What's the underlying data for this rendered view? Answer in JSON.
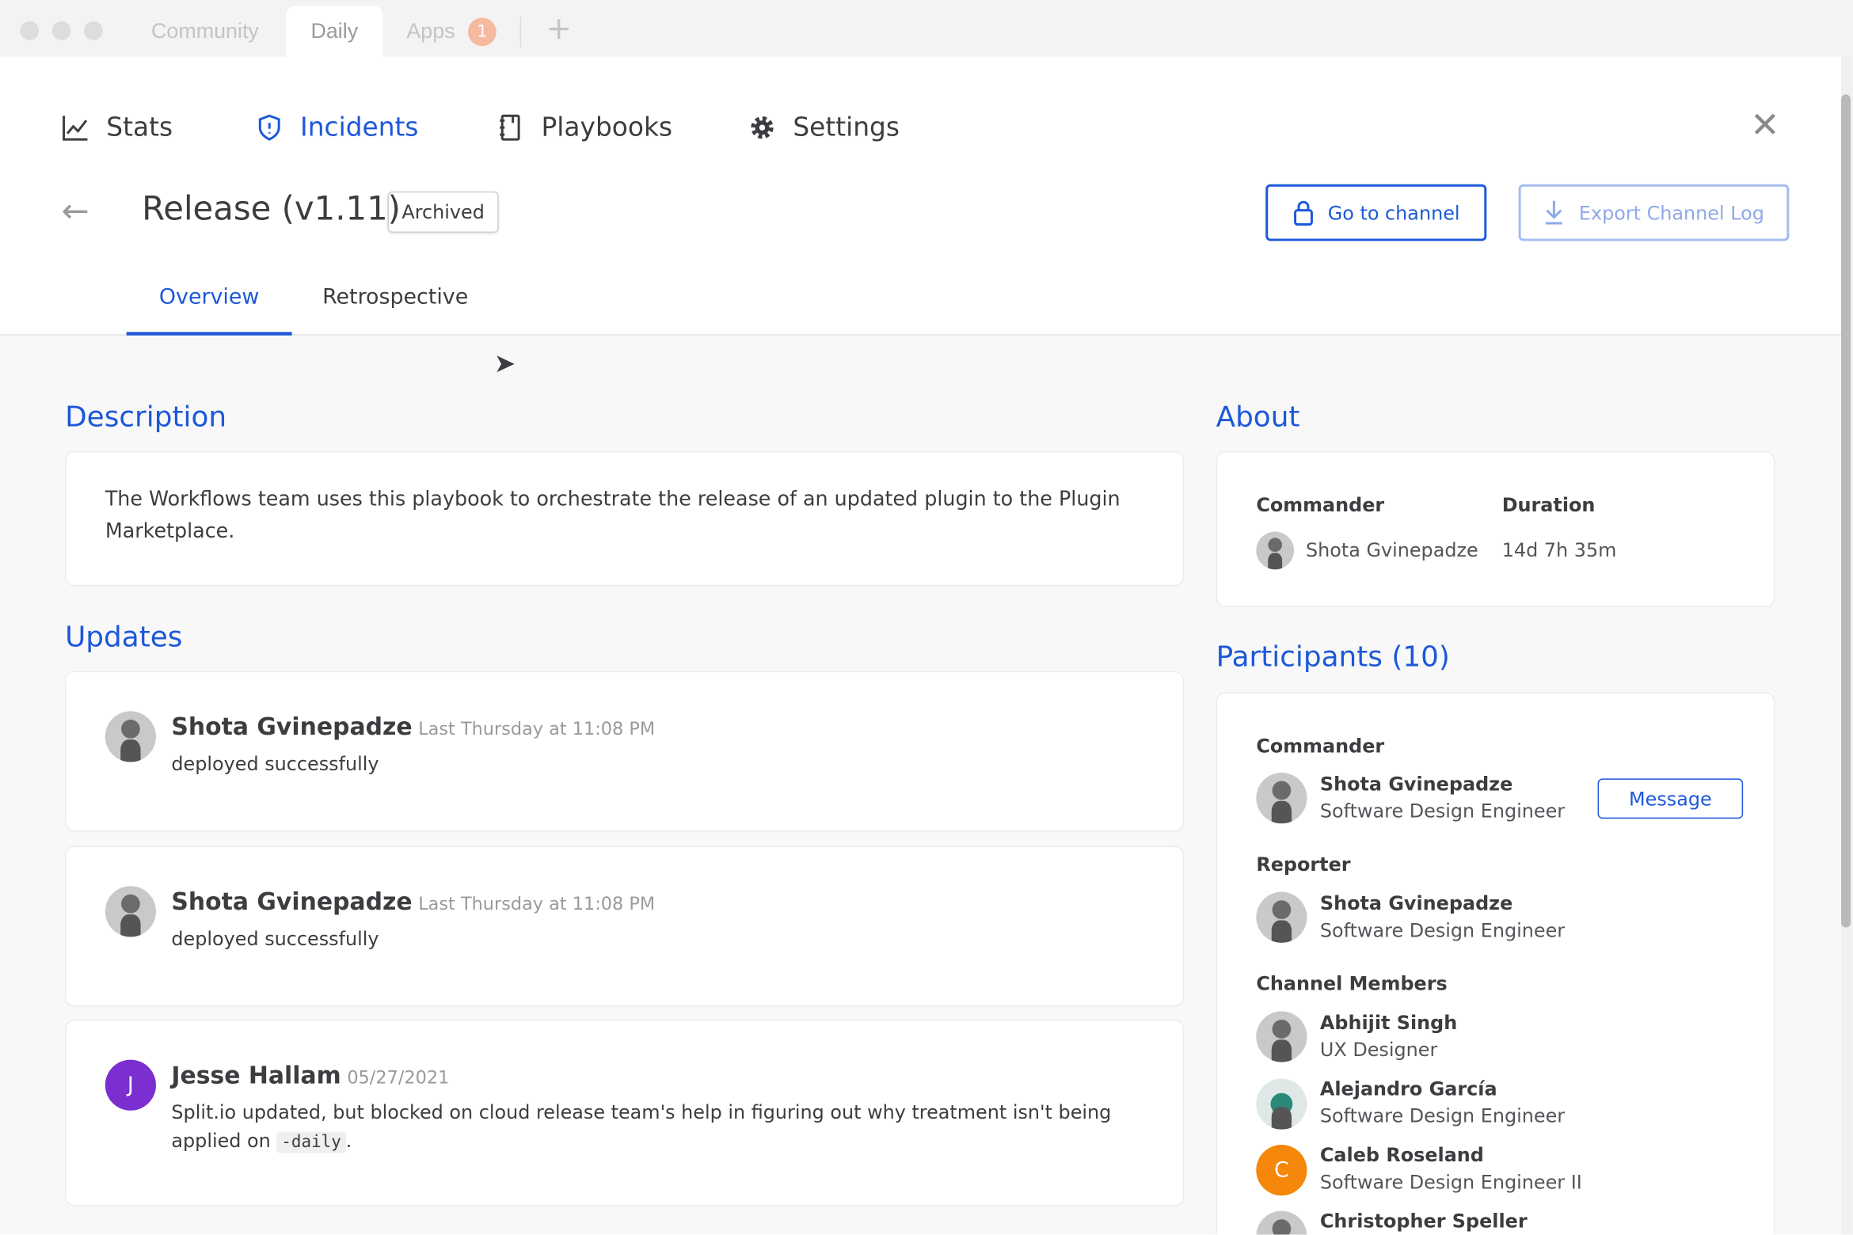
{
  "window": {
    "tabs": [
      {
        "label": "Community"
      },
      {
        "label": "Daily",
        "active": true
      },
      {
        "label": "Apps",
        "badge": "1"
      }
    ],
    "new_tab_icon": "plus-icon"
  },
  "nav": {
    "items": [
      {
        "label": "Stats",
        "icon": "chart-line-icon"
      },
      {
        "label": "Incidents",
        "icon": "shield-alert-icon",
        "active": true
      },
      {
        "label": "Playbooks",
        "icon": "notebook-icon"
      },
      {
        "label": "Settings",
        "icon": "gear-icon"
      }
    ]
  },
  "incident": {
    "title": "Release (v1.11)",
    "status": "Archived",
    "go_to_channel": "Go to channel",
    "export_log": "Export Channel Log"
  },
  "tabs": [
    {
      "label": "Overview",
      "active": true
    },
    {
      "label": "Retrospective"
    }
  ],
  "description": {
    "heading": "Description",
    "text": "The Workflows team uses this playbook to orchestrate the release of an updated plugin to the Plugin Marketplace."
  },
  "updates": {
    "heading": "Updates",
    "items": [
      {
        "author": "Shota Gvinepadze",
        "time": "Last Thursday at 11:08 PM",
        "text": "deployed successfully"
      },
      {
        "author": "Shota Gvinepadze",
        "time": "Last Thursday at 11:08 PM",
        "text": "deployed successfully"
      },
      {
        "author": "Jesse Hallam",
        "initial": "J",
        "time": "05/27/2021",
        "text_before": "Split.io updated, but blocked on cloud release team's help in figuring out why treatment isn't being applied on ",
        "code": "-daily",
        "text_after": "."
      }
    ]
  },
  "about": {
    "heading": "About",
    "commander_label": "Commander",
    "duration_label": "Duration",
    "commander": "Shota Gvinepadze",
    "duration": "14d 7h 35m"
  },
  "participants": {
    "heading": "Participants (10)",
    "commander_label": "Commander",
    "reporter_label": "Reporter",
    "members_label": "Channel Members",
    "message_button": "Message",
    "commander": {
      "name": "Shota Gvinepadze",
      "role": "Software Design Engineer"
    },
    "reporter": {
      "name": "Shota Gvinepadze",
      "role": "Software Design Engineer"
    },
    "members": [
      {
        "name": "Abhijit Singh",
        "role": "UX Designer"
      },
      {
        "name": "Alejandro García",
        "role": "Software Design Engineer"
      },
      {
        "name": "Caleb Roseland",
        "role": "Software Design Engineer II",
        "initial": "C"
      },
      {
        "name": "Christopher Speller",
        "role": ""
      }
    ]
  },
  "colors": {
    "accent": "#1c58d9",
    "avatar_jesse": "#7b2fd1",
    "avatar_caleb": "#f5870a"
  }
}
